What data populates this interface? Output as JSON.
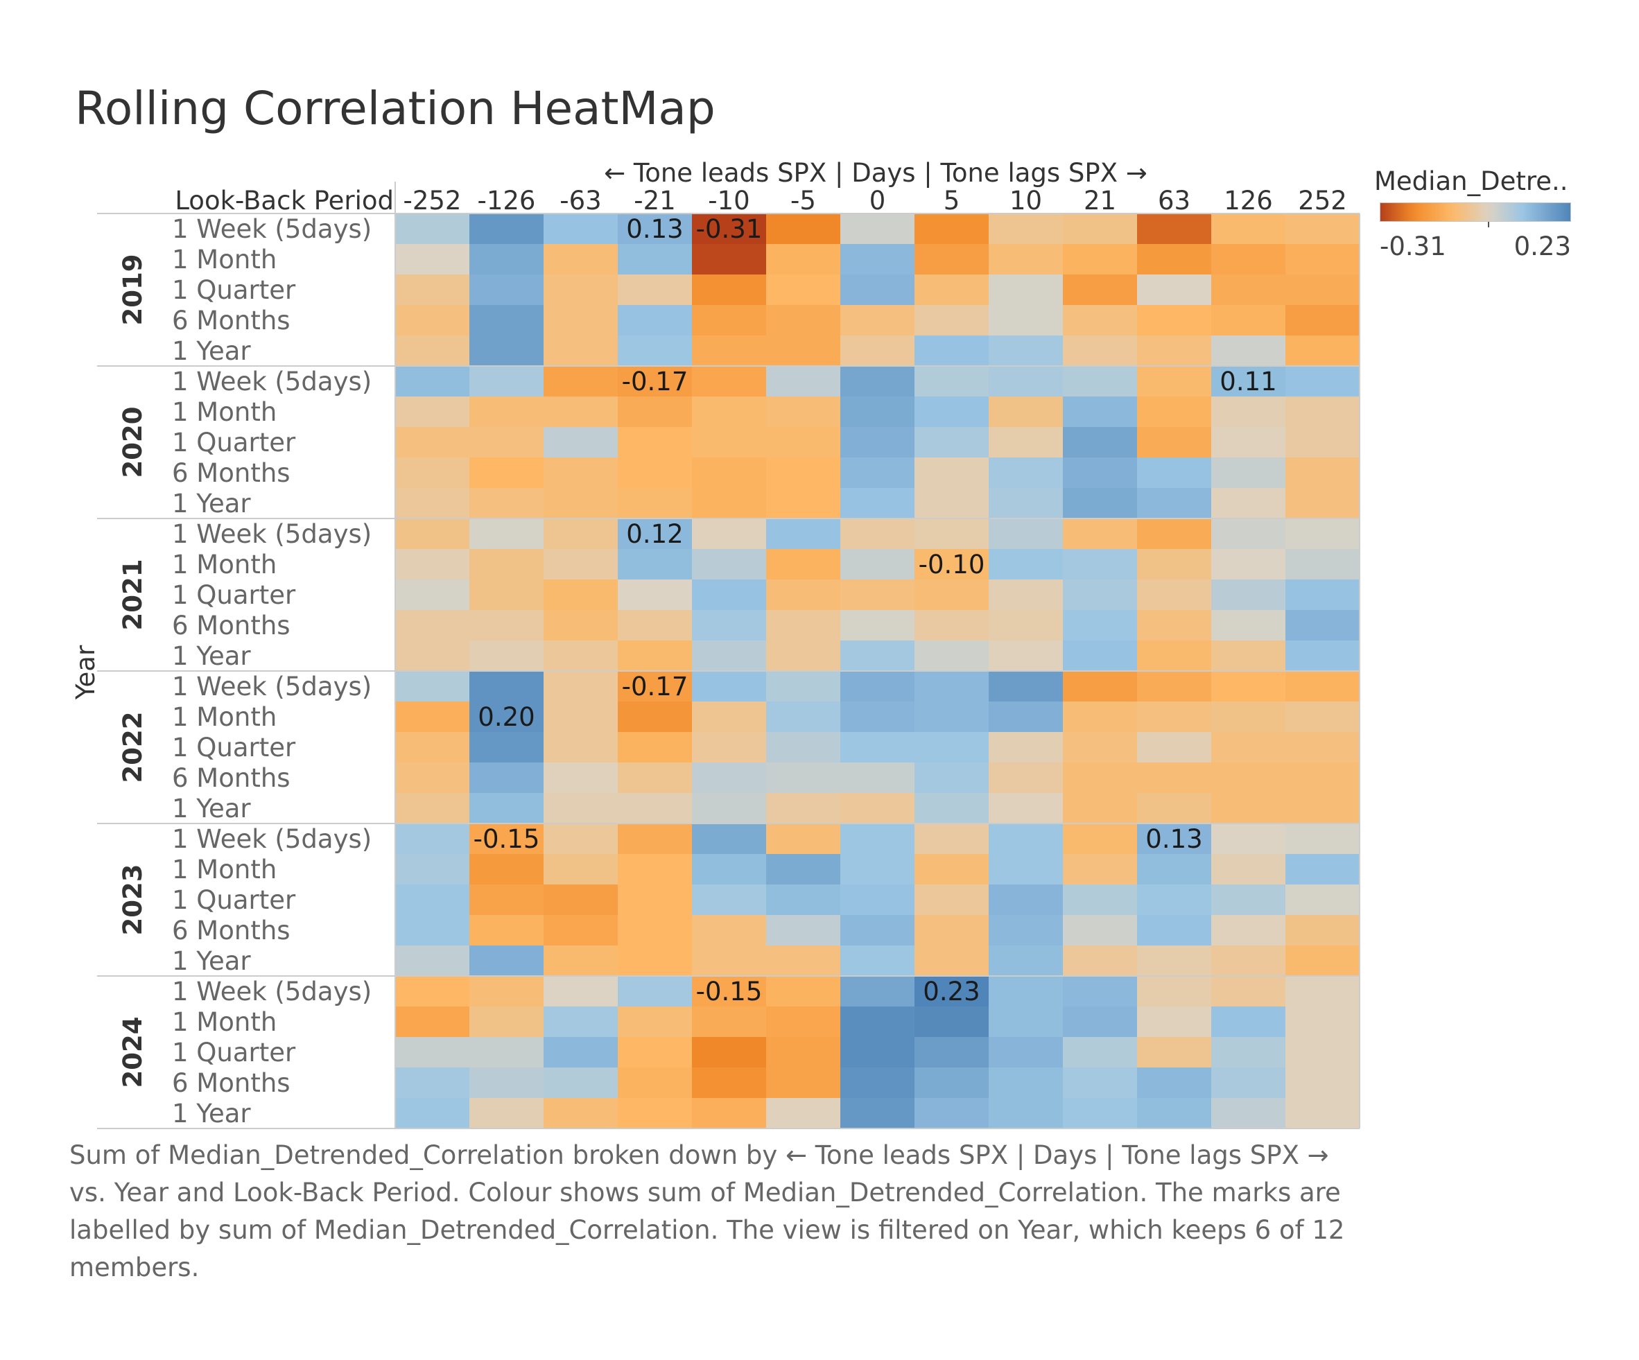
{
  "title": "Rolling Correlation HeatMap",
  "caption": "Sum of Median_Detrended_Correlation broken down by ← Tone leads SPX | Days | Tone lags SPX → vs. Year and Look-Back Period.  Colour shows sum of Median_Detrended_Correlation.  The marks are labelled by sum of Median_Detrended_Correlation. The view is filtered on Year, which keeps 6 of 12 members.",
  "legend": {
    "title": "Median_Detre..",
    "min_label": "-0.31",
    "max_label": "0.23"
  },
  "colors": {
    "neg_max": "#b5401a",
    "neg": "#f28a2a",
    "neg_light": "#fdb866",
    "neutral": "#dcd3c4",
    "pos_light": "#9cc6e4",
    "pos": "#4f85b8"
  },
  "chart_data": {
    "type": "heatmap",
    "title": "Rolling Correlation HeatMap",
    "x_axis_title": "← Tone leads SPX | Days | Tone lags SPX →",
    "x_categories": [
      "-252",
      "-126",
      "-63",
      "-21",
      "-10",
      "-5",
      "0",
      "5",
      "10",
      "21",
      "63",
      "126",
      "252"
    ],
    "row_header_title": "Look-Back Period",
    "y_axis_title": "Year",
    "color_range": [
      -0.31,
      0.23
    ],
    "years": [
      {
        "year": "2019",
        "rows": [
          {
            "period": "1 Week (5days)",
            "values": [
              0.06,
              0.19,
              0.1,
              0.13,
              -0.31,
              -0.22,
              0.02,
              -0.2,
              -0.06,
              -0.07,
              -0.26,
              -0.1,
              -0.09
            ]
          },
          {
            "period": "1 Month",
            "values": [
              0.0,
              0.15,
              -0.09,
              0.11,
              -0.3,
              -0.12,
              0.12,
              -0.17,
              -0.09,
              -0.12,
              -0.18,
              -0.15,
              -0.13
            ]
          },
          {
            "period": "1 Quarter",
            "values": [
              -0.06,
              0.14,
              -0.08,
              -0.04,
              -0.2,
              -0.11,
              0.13,
              -0.09,
              0.01,
              -0.17,
              0.0,
              -0.14,
              -0.14
            ]
          },
          {
            "period": "6 Months",
            "values": [
              -0.08,
              0.17,
              -0.08,
              0.1,
              -0.16,
              -0.14,
              -0.08,
              -0.04,
              0.01,
              -0.08,
              -0.11,
              -0.12,
              -0.17
            ]
          },
          {
            "period": "1 Year",
            "values": [
              -0.06,
              0.17,
              -0.08,
              0.09,
              -0.14,
              -0.14,
              -0.05,
              0.1,
              0.08,
              -0.05,
              -0.08,
              0.02,
              -0.12
            ]
          }
        ]
      },
      {
        "year": "2020",
        "rows": [
          {
            "period": "1 Week (5days)",
            "values": [
              0.11,
              0.07,
              -0.16,
              -0.17,
              -0.15,
              0.04,
              0.16,
              0.06,
              0.07,
              0.06,
              -0.1,
              0.11,
              0.1
            ]
          },
          {
            "period": "1 Month",
            "values": [
              -0.04,
              -0.09,
              -0.09,
              -0.14,
              -0.1,
              -0.09,
              0.15,
              0.1,
              -0.07,
              0.12,
              -0.12,
              -0.02,
              -0.04
            ]
          },
          {
            "period": "1 Quarter",
            "values": [
              -0.08,
              -0.08,
              0.04,
              -0.11,
              -0.1,
              -0.1,
              0.14,
              0.07,
              -0.03,
              0.16,
              -0.14,
              -0.01,
              -0.04
            ]
          },
          {
            "period": "6 Months",
            "values": [
              -0.06,
              -0.11,
              -0.09,
              -0.11,
              -0.12,
              -0.11,
              0.12,
              -0.02,
              0.08,
              0.14,
              0.1,
              0.03,
              -0.08
            ]
          },
          {
            "period": "1 Year",
            "values": [
              -0.05,
              -0.08,
              -0.09,
              -0.1,
              -0.12,
              -0.11,
              0.1,
              -0.02,
              0.07,
              0.15,
              0.12,
              -0.01,
              -0.08
            ]
          }
        ]
      },
      {
        "year": "2021",
        "rows": [
          {
            "period": "1 Week (5days)",
            "values": [
              -0.07,
              0.01,
              -0.06,
              0.12,
              -0.01,
              0.1,
              -0.04,
              -0.03,
              0.05,
              -0.09,
              -0.14,
              0.02,
              0.01
            ]
          },
          {
            "period": "1 Month",
            "values": [
              -0.02,
              -0.07,
              -0.04,
              0.11,
              0.05,
              -0.12,
              0.03,
              -0.1,
              0.09,
              0.08,
              -0.07,
              0.0,
              0.03
            ]
          },
          {
            "period": "1 Quarter",
            "values": [
              0.01,
              -0.07,
              -0.1,
              0.0,
              0.1,
              -0.09,
              -0.08,
              -0.09,
              -0.02,
              0.07,
              -0.05,
              0.05,
              0.1
            ]
          },
          {
            "period": "6 Months",
            "values": [
              -0.04,
              -0.04,
              -0.09,
              -0.05,
              0.08,
              -0.05,
              0.01,
              -0.04,
              -0.03,
              0.09,
              -0.08,
              0.01,
              0.13
            ]
          },
          {
            "period": "1 Year",
            "values": [
              -0.04,
              -0.02,
              -0.05,
              -0.1,
              0.05,
              -0.05,
              0.08,
              0.02,
              -0.01,
              0.1,
              -0.1,
              -0.06,
              0.1
            ]
          }
        ]
      },
      {
        "year": "2022",
        "rows": [
          {
            "period": "1 Week (5days)",
            "values": [
              0.06,
              0.2,
              -0.05,
              -0.17,
              0.1,
              0.06,
              0.14,
              0.12,
              0.18,
              -0.17,
              -0.14,
              -0.11,
              -0.12
            ]
          },
          {
            "period": "1 Month",
            "values": [
              -0.13,
              0.2,
              -0.05,
              -0.19,
              -0.06,
              0.08,
              0.13,
              0.12,
              0.14,
              -0.09,
              -0.08,
              -0.07,
              -0.06
            ]
          },
          {
            "period": "1 Quarter",
            "values": [
              -0.09,
              0.19,
              -0.05,
              -0.12,
              -0.05,
              0.05,
              0.09,
              0.09,
              -0.02,
              -0.08,
              -0.02,
              -0.08,
              -0.08
            ]
          },
          {
            "period": "6 Months",
            "values": [
              -0.08,
              0.14,
              -0.01,
              -0.06,
              0.04,
              0.03,
              0.03,
              0.08,
              -0.04,
              -0.09,
              -0.09,
              -0.09,
              -0.09
            ]
          },
          {
            "period": "1 Year",
            "values": [
              -0.06,
              0.11,
              -0.02,
              -0.02,
              0.03,
              -0.04,
              -0.05,
              0.06,
              -0.01,
              -0.09,
              -0.07,
              -0.09,
              -0.09
            ]
          }
        ]
      },
      {
        "year": "2023",
        "rows": [
          {
            "period": "1 Week (5days)",
            "values": [
              0.08,
              -0.15,
              -0.05,
              -0.14,
              0.15,
              -0.09,
              0.09,
              -0.04,
              0.09,
              -0.1,
              0.13,
              0.0,
              0.01
            ]
          },
          {
            "period": "1 Month",
            "values": [
              0.07,
              -0.18,
              -0.07,
              -0.11,
              0.11,
              0.15,
              0.09,
              -0.09,
              0.09,
              -0.08,
              0.11,
              -0.02,
              0.1
            ]
          },
          {
            "period": "1 Quarter",
            "values": [
              0.09,
              -0.16,
              -0.17,
              -0.11,
              0.08,
              0.11,
              0.1,
              -0.05,
              0.13,
              0.06,
              0.09,
              0.06,
              0.01
            ]
          },
          {
            "period": "6 Months",
            "values": [
              0.09,
              -0.12,
              -0.15,
              -0.11,
              -0.08,
              0.04,
              0.12,
              -0.08,
              0.12,
              0.02,
              0.1,
              -0.01,
              -0.07
            ]
          },
          {
            "period": "1 Year",
            "values": [
              0.04,
              0.14,
              -0.1,
              -0.11,
              -0.08,
              -0.08,
              0.09,
              -0.08,
              0.11,
              -0.05,
              -0.03,
              -0.05,
              -0.1
            ]
          }
        ]
      },
      {
        "year": "2024",
        "rows": [
          {
            "period": "1 Week (5days)",
            "values": [
              -0.11,
              -0.09,
              0.0,
              0.08,
              -0.15,
              -0.12,
              0.16,
              0.23,
              0.11,
              0.12,
              -0.03,
              -0.05,
              -0.01
            ]
          },
          {
            "period": "1 Month",
            "values": [
              -0.15,
              -0.07,
              0.08,
              -0.09,
              -0.14,
              -0.15,
              0.21,
              0.22,
              0.11,
              0.13,
              -0.01,
              0.1,
              -0.01
            ]
          },
          {
            "period": "1 Quarter",
            "values": [
              0.03,
              0.03,
              0.12,
              -0.11,
              -0.22,
              -0.16,
              0.21,
              0.18,
              0.13,
              0.06,
              -0.06,
              0.06,
              -0.01
            ]
          },
          {
            "period": "6 Months",
            "values": [
              0.08,
              0.05,
              0.06,
              -0.12,
              -0.2,
              -0.16,
              0.2,
              0.15,
              0.11,
              0.08,
              0.12,
              0.07,
              -0.01
            ]
          },
          {
            "period": "1 Year",
            "values": [
              0.09,
              -0.02,
              -0.09,
              -0.11,
              -0.13,
              -0.01,
              0.19,
              0.13,
              0.11,
              0.09,
              0.11,
              0.04,
              -0.01
            ]
          }
        ]
      }
    ],
    "labelled_marks": [
      {
        "year": "2019",
        "period": "1 Week (5days)",
        "x": "-21",
        "label": "0.13"
      },
      {
        "year": "2019",
        "period": "1 Week (5days)",
        "x": "-10",
        "label": "-0.31"
      },
      {
        "year": "2020",
        "period": "1 Week (5days)",
        "x": "-21",
        "label": "-0.17"
      },
      {
        "year": "2020",
        "period": "1 Week (5days)",
        "x": "126",
        "label": "0.11"
      },
      {
        "year": "2021",
        "period": "1 Week (5days)",
        "x": "-21",
        "label": "0.12"
      },
      {
        "year": "2021",
        "period": "1 Month",
        "x": "5",
        "label": "-0.10"
      },
      {
        "year": "2022",
        "period": "1 Week (5days)",
        "x": "-21",
        "label": "-0.17"
      },
      {
        "year": "2022",
        "period": "1 Month",
        "x": "-126",
        "label": "0.20"
      },
      {
        "year": "2023",
        "period": "1 Week (5days)",
        "x": "-126",
        "label": "-0.15"
      },
      {
        "year": "2023",
        "period": "1 Week (5days)",
        "x": "63",
        "label": "0.13"
      },
      {
        "year": "2024",
        "period": "1 Week (5days)",
        "x": "-10",
        "label": "-0.15"
      },
      {
        "year": "2024",
        "period": "1 Week (5days)",
        "x": "5",
        "label": "0.23"
      }
    ]
  }
}
